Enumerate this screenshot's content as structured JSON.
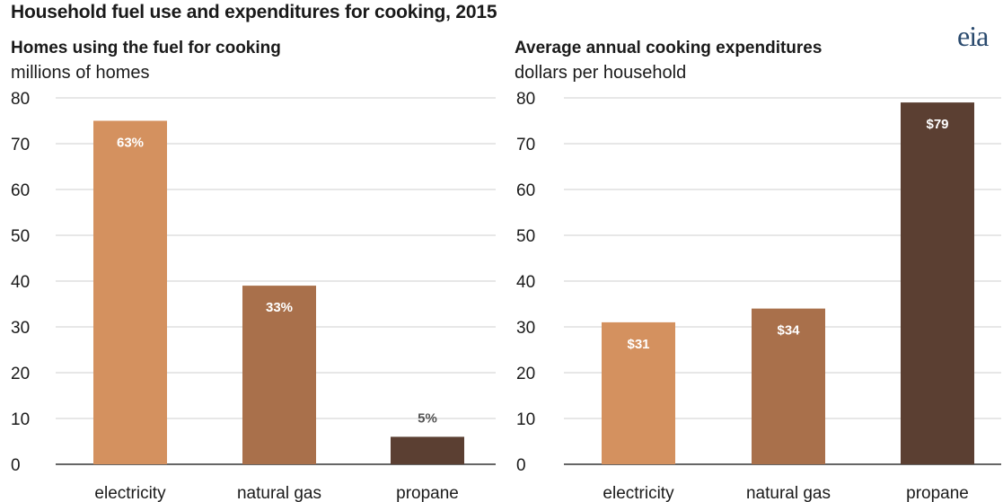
{
  "title": "Household fuel use and expenditures for cooking, 2015",
  "logo_text": "eia",
  "colors": {
    "electricity": "#d4915f",
    "natural_gas": "#a9704b",
    "propane": "#5b3f32",
    "grid": "#cfcfcf",
    "axis": "#333333"
  },
  "chart_data": [
    {
      "type": "bar",
      "title": "Homes using the fuel for cooking",
      "ylabel": "millions of homes",
      "xlabel": "",
      "categories": [
        "electricity",
        "natural gas",
        "propane"
      ],
      "values": [
        75,
        39,
        6
      ],
      "data_labels": [
        "63%",
        "33%",
        "5%"
      ],
      "ylim": [
        0,
        80
      ],
      "yticks": [
        0,
        10,
        20,
        30,
        40,
        50,
        60,
        70,
        80
      ],
      "grid": true
    },
    {
      "type": "bar",
      "title": "Average annual cooking expenditures",
      "ylabel": "dollars per household",
      "xlabel": "",
      "categories": [
        "electricity",
        "natural gas",
        "propane"
      ],
      "values": [
        31,
        34,
        79
      ],
      "data_labels": [
        "$31",
        "$34",
        "$79"
      ],
      "ylim": [
        0,
        80
      ],
      "yticks": [
        0,
        10,
        20,
        30,
        40,
        50,
        60,
        70,
        80
      ],
      "grid": true
    }
  ]
}
